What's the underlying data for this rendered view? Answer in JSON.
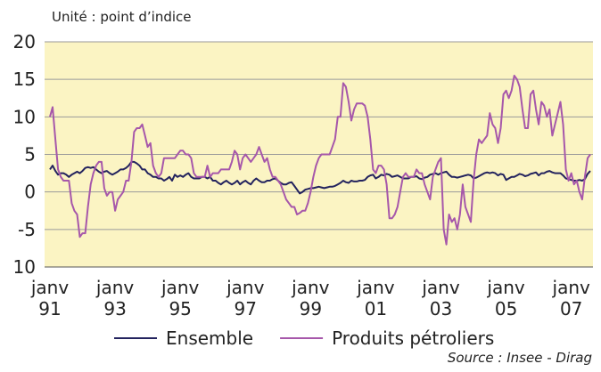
{
  "chart_data": {
    "type": "line",
    "subtitle": "Unité : point d’indice",
    "source": "Source : Insee - Dirag",
    "categories": [
      "janv 91",
      null,
      null,
      null,
      null,
      null,
      null,
      null,
      null,
      null,
      null,
      null,
      null,
      null,
      null,
      null,
      null,
      null,
      null,
      null,
      null,
      null,
      null,
      null,
      "janv 93",
      null,
      null,
      null,
      null,
      null,
      null,
      null,
      null,
      null,
      null,
      null,
      null,
      null,
      null,
      null,
      null,
      null,
      null,
      null,
      null,
      null,
      null,
      null,
      "janv 95",
      null,
      null,
      null,
      null,
      null,
      null,
      null,
      null,
      null,
      null,
      null,
      null,
      null,
      null,
      null,
      null,
      null,
      null,
      null,
      null,
      null,
      null,
      null,
      "janv 97",
      null,
      null,
      null,
      null,
      null,
      null,
      null,
      null,
      null,
      null,
      null,
      null,
      null,
      null,
      null,
      null,
      null,
      null,
      null,
      null,
      null,
      null,
      null,
      "janv 99",
      null,
      null,
      null,
      null,
      null,
      null,
      null,
      null,
      null,
      null,
      null,
      null,
      null,
      null,
      null,
      null,
      null,
      null,
      null,
      null,
      null,
      null,
      null,
      "janv 01",
      null,
      null,
      null,
      null,
      null,
      null,
      null,
      null,
      null,
      null,
      null,
      null,
      null,
      null,
      null,
      null,
      null,
      null,
      null,
      null,
      null,
      null,
      null,
      "janv 03",
      null,
      null,
      null,
      null,
      null,
      null,
      null,
      null,
      null,
      null,
      null,
      null,
      null,
      null,
      null,
      null,
      null,
      null,
      null,
      null,
      null,
      null,
      null,
      "janv 05",
      null,
      null,
      null,
      null,
      null,
      null,
      null,
      null,
      null,
      null,
      null,
      null,
      null,
      null,
      null,
      null,
      null,
      null,
      null,
      null,
      null,
      null,
      null,
      "janv 07",
      null,
      null,
      null,
      null,
      null,
      null,
      null
    ],
    "series": [
      {
        "name": "Ensemble",
        "color": "#23235e",
        "values": [
          3,
          3.5,
          2.8,
          2.3,
          2.5,
          2.5,
          2.3,
          2,
          2.3,
          2.5,
          2.7,
          2.5,
          2.8,
          3.2,
          3.3,
          3.2,
          3.3,
          3,
          2.7,
          2.5,
          2.7,
          2.8,
          2.5,
          2.3,
          2.5,
          2.7,
          3,
          3,
          3.2,
          3.5,
          4,
          4,
          3.8,
          3.5,
          3,
          3,
          2.5,
          2.3,
          2,
          2,
          1.8,
          1.8,
          1.5,
          1.7,
          2,
          1.5,
          2.3,
          2,
          2.2,
          2,
          2.3,
          2.5,
          2,
          1.8,
          1.8,
          1.8,
          2,
          2,
          1.8,
          2,
          1.5,
          1.5,
          1.2,
          1,
          1.3,
          1.5,
          1.2,
          1,
          1.2,
          1.5,
          1,
          1.3,
          1.5,
          1.2,
          1,
          1.5,
          1.8,
          1.5,
          1.3,
          1.3,
          1.5,
          1.5,
          1.7,
          1.8,
          1.5,
          1.2,
          1,
          1,
          1.2,
          1.3,
          0.8,
          0.3,
          -0.2,
          0,
          0.3,
          0.4,
          0.5,
          0.5,
          0.6,
          0.7,
          0.6,
          0.5,
          0.6,
          0.7,
          0.7,
          0.8,
          1,
          1.2,
          1.5,
          1.3,
          1.2,
          1.5,
          1.4,
          1.4,
          1.5,
          1.5,
          1.6,
          2,
          2.2,
          2.3,
          1.8,
          2,
          2.3,
          2.2,
          2.4,
          2.3,
          2,
          2.1,
          2.2,
          2,
          1.8,
          1.8,
          1.8,
          2,
          2,
          2.1,
          1.8,
          1.7,
          1.9,
          2,
          2.3,
          2.4,
          2.5,
          2.3,
          2.5,
          2.6,
          2.7,
          2.3,
          2,
          2,
          1.9,
          2,
          2.1,
          2.2,
          2.3,
          2.2,
          1.8,
          1.9,
          2.1,
          2.3,
          2.5,
          2.6,
          2.5,
          2.6,
          2.5,
          2.2,
          2.4,
          2.3,
          1.6,
          1.8,
          2,
          2,
          2.2,
          2.4,
          2.3,
          2.1,
          2.2,
          2.4,
          2.5,
          2.6,
          2.2,
          2.5,
          2.5,
          2.7,
          2.8,
          2.6,
          2.5,
          2.5,
          2.5,
          2.2,
          1.8,
          1.7,
          1.6,
          1.5,
          1.5,
          1.6,
          1.5,
          1.7,
          2.4,
          2.8
        ]
      },
      {
        "name": "Produits pétroliers",
        "color": "#a657aa",
        "values": [
          10,
          11.3,
          7,
          3,
          2,
          1.5,
          1.5,
          1.5,
          -1.5,
          -2.5,
          -3,
          -6,
          -5.5,
          -5.5,
          -2,
          1,
          2.5,
          3.5,
          4,
          4,
          0.5,
          -0.5,
          0,
          0,
          -2.5,
          -1,
          -0.5,
          0,
          1.5,
          1.5,
          4,
          8,
          8.5,
          8.5,
          9,
          7.5,
          6,
          6.5,
          3.5,
          2.5,
          2,
          2.5,
          4.5,
          4.5,
          4.5,
          4.5,
          4.5,
          5,
          5.5,
          5.5,
          5,
          5,
          4.5,
          2.5,
          2,
          2,
          2,
          2,
          3.5,
          2,
          2.5,
          2.5,
          2.5,
          3,
          3,
          3,
          3,
          4,
          5.5,
          5,
          3,
          4.5,
          5,
          4.5,
          4,
          4.5,
          5,
          6,
          5,
          4,
          4.5,
          3,
          2,
          2,
          1.5,
          1,
          0,
          -1,
          -1.5,
          -2,
          -2,
          -3,
          -2.8,
          -2.5,
          -2.5,
          -1.5,
          0,
          2,
          3.5,
          4.5,
          5,
          5,
          5,
          5,
          6,
          7,
          10,
          10,
          14.5,
          14,
          12,
          9.5,
          11,
          11.8,
          11.8,
          11.8,
          11.5,
          10,
          7,
          3,
          2.5,
          3.5,
          3.5,
          3,
          1,
          -3.5,
          -3.5,
          -3,
          -2,
          0,
          2,
          2.5,
          2,
          2,
          2,
          3,
          2.5,
          2.5,
          1,
          0,
          -1,
          2,
          3,
          4,
          4.5,
          -5,
          -7,
          -3,
          -4,
          -3.5,
          -5,
          -3,
          1,
          -2,
          -3,
          -4,
          1.5,
          5,
          7,
          6.5,
          7,
          7.5,
          10.5,
          9,
          8.5,
          6.5,
          8.5,
          13,
          13.5,
          12.5,
          13.5,
          15.5,
          15,
          14,
          11,
          8.5,
          8.5,
          13,
          13.5,
          11,
          9,
          12,
          11.5,
          10,
          11,
          7.5,
          9,
          10.5,
          12,
          9,
          3,
          1.5,
          2.5,
          1,
          1.5,
          0,
          -1,
          2,
          4.5,
          5
        ]
      }
    ],
    "ylim": [
      -10,
      20
    ],
    "yticks": [
      20,
      15,
      10,
      5,
      0,
      -5,
      {
        "value": -10,
        "label": "10"
      }
    ],
    "grid": true
  }
}
